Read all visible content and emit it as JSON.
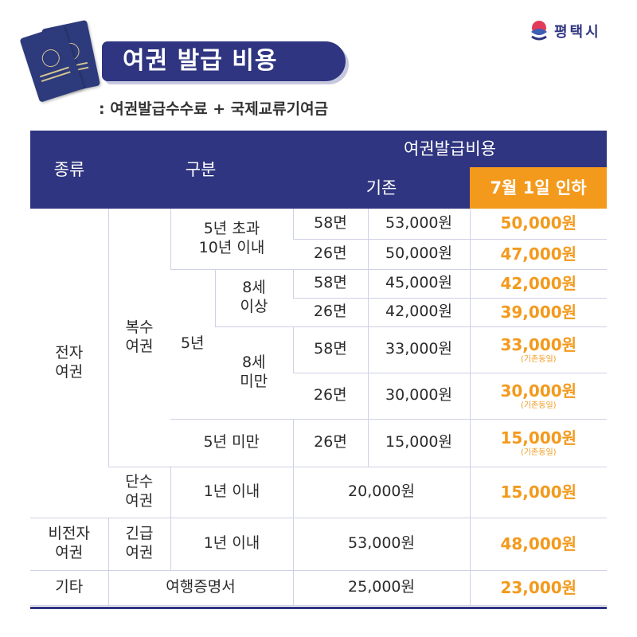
{
  "header": {
    "title": "여권 발급 비용",
    "subtitle": ": 여권발급수수료 + 국제교류기여금",
    "brand": "평택시",
    "accent_color": "#2f3580",
    "highlight_color": "#f39a1d"
  },
  "table": {
    "headers": {
      "type": "종류",
      "category": "구분",
      "fee": "여권발급비용",
      "existing": "기존",
      "new": "7월 1일 인하"
    },
    "groups": {
      "electronic": "전자\n여권",
      "multiple": "복수\n여권",
      "five_year": "5년",
      "over5_10": "5년 초과\n10년 이내",
      "age8_over": "8세\n이상",
      "age8_under": "8세\n미만",
      "under5": "5년 미만",
      "single": "단수\n여권",
      "non_electronic": "비전자\n여권",
      "emergency": "긴급\n여권",
      "within1": "1년 이내",
      "other": "기타",
      "travel_cert": "여행증명서"
    },
    "rows": [
      {
        "pages": "58면",
        "old": "53,000원",
        "new": "50,000원",
        "note": ""
      },
      {
        "pages": "26면",
        "old": "50,000원",
        "new": "47,000원",
        "note": ""
      },
      {
        "pages": "58면",
        "old": "45,000원",
        "new": "42,000원",
        "note": ""
      },
      {
        "pages": "26면",
        "old": "42,000원",
        "new": "39,000원",
        "note": ""
      },
      {
        "pages": "58면",
        "old": "33,000원",
        "new": "33,000원",
        "note": "(기존동일)"
      },
      {
        "pages": "26면",
        "old": "30,000원",
        "new": "30,000원",
        "note": "(기존동일)"
      },
      {
        "pages": "26면",
        "old": "15,000원",
        "new": "15,000원",
        "note": "(기존동일)"
      },
      {
        "pages": "",
        "old": "20,000원",
        "new": "15,000원",
        "note": ""
      },
      {
        "pages": "",
        "old": "53,000원",
        "new": "48,000원",
        "note": ""
      },
      {
        "pages": "",
        "old": "25,000원",
        "new": "23,000원",
        "note": ""
      }
    ]
  }
}
